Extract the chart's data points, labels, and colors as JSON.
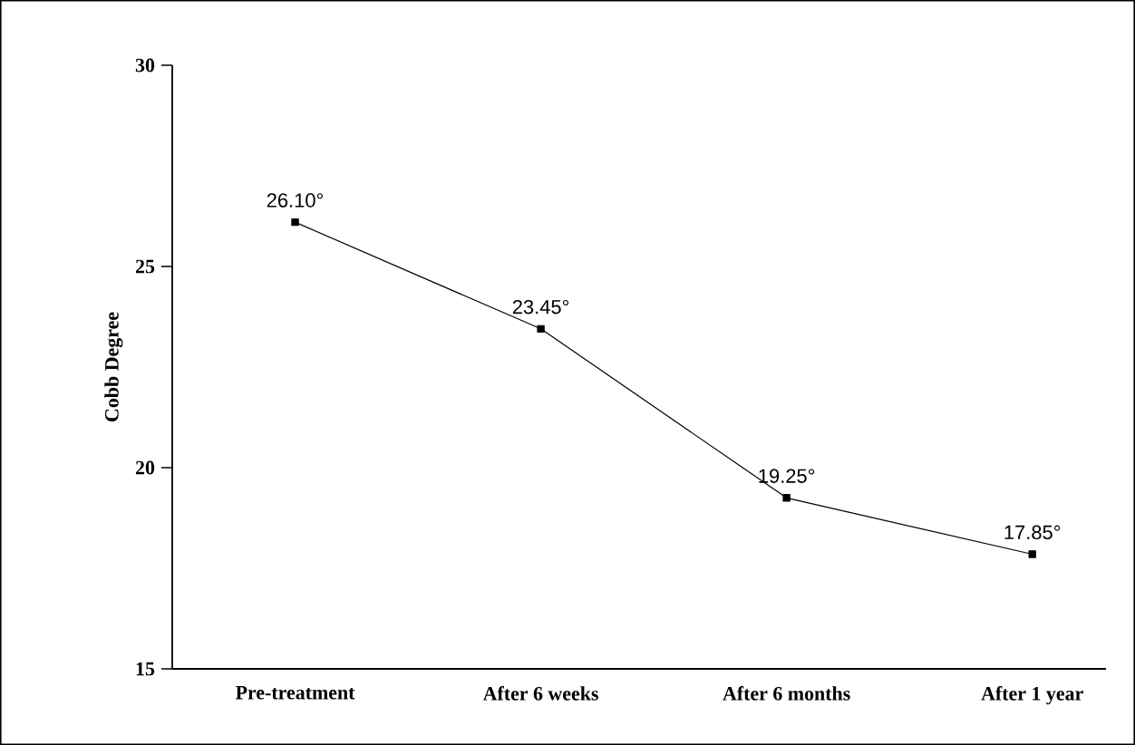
{
  "chart_data": {
    "type": "line",
    "ylabel": "Cobb Degree",
    "categories": [
      "Pre-treatment",
      "After 6 weeks",
      "After 6 months",
      "After 1 year"
    ],
    "series": [
      {
        "color": "#000000",
        "values": [
          26.1,
          23.45,
          19.25,
          17.85
        ]
      }
    ],
    "value_labels": [
      "26.10°",
      "23.45°",
      "19.25°",
      "17.85°"
    ],
    "ylim": [
      15,
      30
    ],
    "yticks": [
      15,
      20,
      25,
      30
    ],
    "marker": "square",
    "line_style": "solid"
  }
}
